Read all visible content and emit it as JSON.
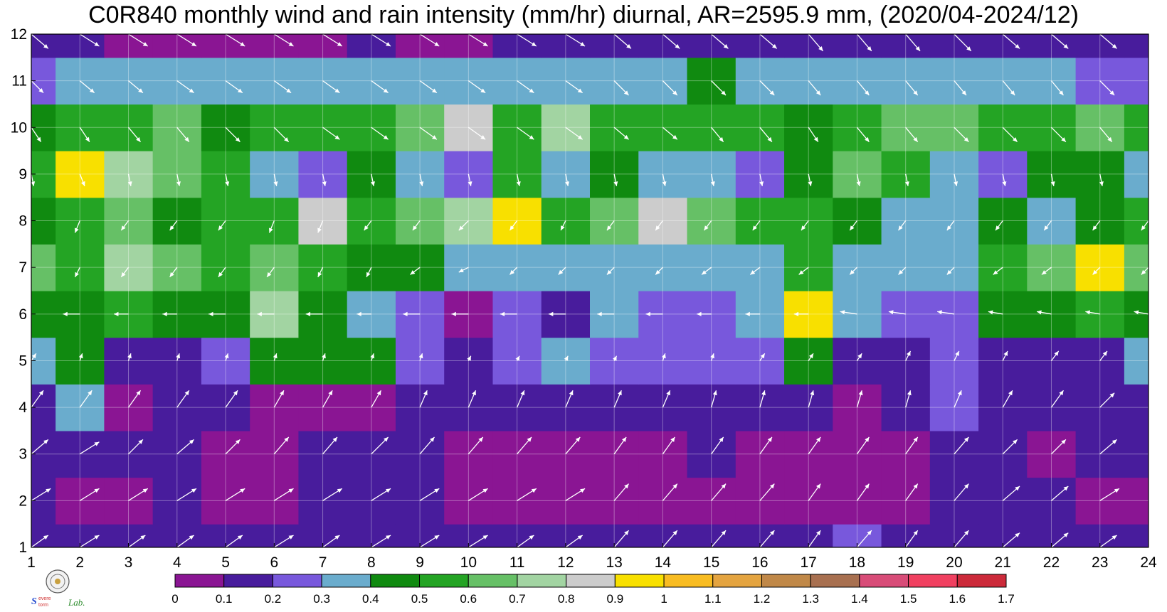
{
  "title": "C0R840 monthly wind and rain intensity (mm/hr) diurnal, AR=2595.9 mm, (2020/04-2024/12)",
  "logo_text": "Severe Storm Lab.",
  "chart_data": {
    "type": "heatmap",
    "title": "C0R840 monthly wind and rain intensity (mm/hr) diurnal, AR=2595.9 mm, (2020/04-2024/12)",
    "xlabel": "",
    "ylabel": "",
    "xlim": [
      1,
      24
    ],
    "ylim": [
      1,
      12
    ],
    "x_ticks": [
      1,
      2,
      3,
      4,
      5,
      6,
      7,
      8,
      9,
      10,
      11,
      12,
      13,
      14,
      15,
      16,
      17,
      18,
      19,
      20,
      21,
      22,
      23,
      24
    ],
    "y_ticks": [
      1,
      2,
      3,
      4,
      5,
      6,
      7,
      8,
      9,
      10,
      11,
      12
    ],
    "grid": true,
    "colorbar": {
      "levels": [
        0,
        0.1,
        0.2,
        0.3,
        0.4,
        0.5,
        0.6,
        0.7,
        0.8,
        0.9,
        1,
        1.1,
        1.2,
        1.3,
        1.4,
        1.5,
        1.6,
        1.7
      ],
      "colors": [
        "#8a1593",
        "#481c9c",
        "#7858dc",
        "#6aaccd",
        "#108a10",
        "#24a424",
        "#66c066",
        "#a2d4a2",
        "#cccccc",
        "#f8e000",
        "#f8bc22",
        "#e4a440",
        "#c08848",
        "#a87050",
        "#d84c78",
        "#f04060",
        "#cc2a3a"
      ]
    },
    "months": [
      1,
      2,
      3,
      4,
      5,
      6,
      7,
      8,
      9,
      10,
      11,
      12
    ],
    "hours": [
      1,
      2,
      3,
      4,
      5,
      6,
      7,
      8,
      9,
      10,
      11,
      12,
      13,
      14,
      15,
      16,
      17,
      18,
      19,
      20,
      21,
      22,
      23,
      24
    ],
    "values": [
      [
        0.18,
        0.15,
        0.18,
        0.15,
        0.14,
        0.13,
        0.14,
        0.16,
        0.15,
        0.15,
        0.12,
        0.16,
        0.13,
        0.12,
        0.14,
        0.13,
        0.18,
        0.21,
        0.16,
        0.14,
        0.14,
        0.13,
        0.12,
        0.15
      ],
      [
        0.15,
        0.09,
        0.08,
        0.12,
        0.08,
        0.08,
        0.11,
        0.14,
        0.14,
        0.08,
        0.06,
        0.07,
        0.06,
        0.07,
        0.06,
        0.07,
        0.06,
        0.05,
        0.06,
        0.12,
        0.15,
        0.15,
        0.08,
        0.06
      ],
      [
        0.14,
        0.14,
        0.12,
        0.15,
        0.06,
        0.08,
        0.16,
        0.16,
        0.15,
        0.05,
        0.04,
        0.05,
        0.05,
        0.04,
        0.14,
        0.05,
        0.07,
        0.04,
        0.06,
        0.12,
        0.14,
        0.08,
        0.14,
        0.13
      ],
      [
        0.18,
        0.32,
        0.06,
        0.12,
        0.11,
        0.08,
        0.08,
        0.08,
        0.11,
        0.13,
        0.14,
        0.15,
        0.17,
        0.14,
        0.14,
        0.12,
        0.12,
        0.08,
        0.14,
        0.21,
        0.16,
        0.17,
        0.15,
        0.16
      ],
      [
        0.35,
        0.42,
        0.18,
        0.18,
        0.26,
        0.42,
        0.46,
        0.45,
        0.24,
        0.18,
        0.23,
        0.33,
        0.26,
        0.24,
        0.22,
        0.26,
        0.42,
        0.15,
        0.16,
        0.22,
        0.12,
        0.12,
        0.17,
        0.38
      ],
      [
        0.48,
        0.48,
        0.55,
        0.42,
        0.45,
        0.74,
        0.46,
        0.38,
        0.26,
        0.08,
        0.24,
        0.18,
        0.34,
        0.29,
        0.23,
        0.33,
        0.94,
        0.36,
        0.26,
        0.25,
        0.42,
        0.48,
        0.52,
        0.46
      ],
      [
        0.62,
        0.51,
        0.72,
        0.66,
        0.58,
        0.62,
        0.52,
        0.42,
        0.42,
        0.36,
        0.38,
        0.32,
        0.34,
        0.36,
        0.36,
        0.36,
        0.58,
        0.38,
        0.32,
        0.33,
        0.58,
        0.66,
        0.92,
        0.68
      ],
      [
        0.46,
        0.52,
        0.66,
        0.46,
        0.52,
        0.52,
        0.82,
        0.56,
        0.62,
        0.72,
        0.98,
        0.54,
        0.68,
        0.86,
        0.62,
        0.58,
        0.52,
        0.46,
        0.36,
        0.33,
        0.42,
        0.38,
        0.42,
        0.52
      ],
      [
        0.53,
        0.96,
        0.72,
        0.64,
        0.54,
        0.36,
        0.22,
        0.46,
        0.36,
        0.22,
        0.52,
        0.38,
        0.42,
        0.36,
        0.34,
        0.22,
        0.44,
        0.62,
        0.52,
        0.34,
        0.22,
        0.42,
        0.46,
        0.33
      ],
      [
        0.46,
        0.58,
        0.52,
        0.66,
        0.48,
        0.52,
        0.58,
        0.54,
        0.62,
        0.82,
        0.56,
        0.78,
        0.56,
        0.54,
        0.56,
        0.52,
        0.46,
        0.52,
        0.68,
        0.64,
        0.52,
        0.54,
        0.62,
        0.55
      ],
      [
        0.26,
        0.36,
        0.34,
        0.36,
        0.38,
        0.36,
        0.34,
        0.36,
        0.36,
        0.34,
        0.36,
        0.38,
        0.36,
        0.36,
        0.42,
        0.34,
        0.32,
        0.36,
        0.38,
        0.38,
        0.36,
        0.32,
        0.26,
        0.22
      ],
      [
        0.15,
        0.14,
        0.06,
        0.07,
        0.08,
        0.07,
        0.08,
        0.12,
        0.06,
        0.06,
        0.12,
        0.14,
        0.12,
        0.13,
        0.15,
        0.13,
        0.14,
        0.16,
        0.14,
        0.15,
        0.15,
        0.16,
        0.14,
        0.15
      ]
    ],
    "wind_vectors": {
      "u": [
        [
          0.7,
          0.8,
          0.7,
          0.7,
          0.7,
          0.8,
          0.7,
          0.8,
          0.8,
          0.8,
          0.7,
          0.7,
          0.6,
          0.6,
          0.6,
          0.6,
          0.5,
          0.6,
          0.5,
          0.6,
          0.7,
          0.7,
          0.7,
          0.7
        ],
        [
          0.8,
          0.8,
          0.8,
          0.8,
          0.8,
          0.8,
          0.8,
          0.8,
          0.8,
          0.8,
          0.8,
          0.8,
          0.6,
          0.6,
          0.6,
          0.6,
          0.5,
          0.5,
          0.5,
          0.6,
          0.7,
          0.7,
          0.8,
          0.8
        ],
        [
          0.7,
          0.8,
          0.6,
          0.7,
          0.6,
          0.6,
          0.6,
          0.7,
          0.6,
          0.6,
          0.6,
          0.6,
          0.5,
          0.5,
          0.5,
          0.5,
          0.5,
          0.5,
          0.5,
          0.6,
          0.6,
          0.6,
          0.7,
          0.7
        ],
        [
          0.5,
          0.5,
          0.5,
          0.5,
          0.5,
          0.4,
          0.4,
          0.4,
          0.3,
          0.3,
          0.3,
          0.3,
          0.3,
          0.3,
          0.2,
          0.2,
          0.2,
          0.2,
          0.2,
          0.3,
          0.4,
          0.5,
          0.6,
          0.5
        ],
        [
          0.2,
          0.1,
          0.1,
          0.1,
          0.1,
          0.1,
          0.1,
          0.1,
          0.1,
          0.1,
          0.1,
          0.1,
          0.1,
          0.1,
          0.1,
          0.2,
          0.2,
          0.2,
          0.2,
          0.2,
          0.2,
          0.3,
          0.3,
          0.2
        ],
        [
          -0.7,
          -0.7,
          -0.6,
          -0.6,
          -0.7,
          -0.7,
          -0.7,
          -0.6,
          -0.7,
          -0.7,
          -0.7,
          -0.7,
          -0.7,
          -0.7,
          -0.6,
          -0.6,
          -0.6,
          -0.7,
          -0.7,
          -0.7,
          -0.6,
          -0.6,
          -0.6,
          -0.6
        ],
        [
          -0.4,
          -0.2,
          -0.3,
          -0.3,
          -0.3,
          -0.3,
          -0.2,
          -0.2,
          -0.4,
          -0.4,
          -0.3,
          -0.3,
          -0.3,
          -0.3,
          -0.4,
          -0.4,
          -0.4,
          -0.3,
          -0.3,
          -0.3,
          -0.4,
          -0.4,
          -0.3,
          -0.3
        ],
        [
          -0.3,
          -0.2,
          -0.3,
          -0.3,
          -0.3,
          -0.2,
          -0.2,
          -0.3,
          -0.3,
          -0.4,
          -0.3,
          -0.2,
          -0.3,
          -0.3,
          -0.3,
          -0.3,
          -0.3,
          -0.3,
          -0.3,
          -0.3,
          -0.3,
          -0.3,
          -0.3,
          -0.3
        ],
        [
          0.1,
          0.2,
          0.1,
          0.1,
          0.1,
          0.1,
          0.1,
          0.1,
          0.1,
          0.1,
          0.1,
          0.1,
          0.1,
          0.1,
          0.1,
          0.1,
          0.1,
          0.1,
          0.1,
          0.1,
          0.1,
          0.1,
          0.1,
          0.1
        ],
        [
          0.4,
          0.4,
          0.5,
          0.5,
          0.6,
          0.6,
          0.7,
          0.7,
          0.7,
          0.7,
          0.7,
          0.7,
          0.6,
          0.6,
          0.5,
          0.5,
          0.4,
          0.5,
          0.5,
          0.6,
          0.6,
          0.6,
          0.5,
          0.5
        ],
        [
          0.5,
          0.6,
          0.6,
          0.7,
          0.7,
          0.7,
          0.7,
          0.7,
          0.7,
          0.7,
          0.7,
          0.7,
          0.6,
          0.6,
          0.6,
          0.6,
          0.5,
          0.5,
          0.5,
          0.5,
          0.5,
          0.5,
          0.6,
          0.6
        ],
        [
          0.7,
          0.8,
          0.8,
          0.8,
          0.8,
          0.8,
          0.8,
          0.8,
          0.8,
          0.8,
          0.8,
          0.8,
          0.7,
          0.7,
          0.7,
          0.7,
          0.6,
          0.6,
          0.6,
          0.7,
          0.7,
          0.7,
          0.7,
          0.7
        ]
      ],
      "v": [
        [
          0.5,
          0.5,
          0.5,
          0.5,
          0.5,
          0.5,
          0.5,
          0.5,
          0.5,
          0.5,
          0.5,
          0.5,
          0.7,
          0.7,
          0.7,
          0.7,
          0.7,
          0.7,
          0.7,
          0.7,
          0.6,
          0.6,
          0.5,
          0.5
        ],
        [
          0.5,
          0.5,
          0.5,
          0.5,
          0.5,
          0.5,
          0.5,
          0.5,
          0.5,
          0.5,
          0.5,
          0.5,
          0.7,
          0.7,
          0.7,
          0.7,
          0.7,
          0.7,
          0.7,
          0.7,
          0.6,
          0.6,
          0.5,
          0.5
        ],
        [
          0.6,
          0.5,
          0.6,
          0.6,
          0.6,
          0.7,
          0.7,
          0.7,
          0.7,
          0.7,
          0.7,
          0.7,
          0.7,
          0.7,
          0.7,
          0.7,
          0.7,
          0.7,
          0.7,
          0.7,
          0.6,
          0.6,
          0.6,
          0.6
        ],
        [
          0.7,
          0.7,
          0.7,
          0.7,
          0.7,
          0.7,
          0.7,
          0.7,
          0.7,
          0.7,
          0.7,
          0.7,
          0.7,
          0.7,
          0.7,
          0.7,
          0.7,
          0.7,
          0.7,
          0.7,
          0.7,
          0.7,
          0.6,
          0.6
        ],
        [
          0.3,
          0.3,
          0.3,
          0.3,
          0.3,
          0.3,
          0.3,
          0.3,
          0.3,
          0.2,
          0.2,
          0.2,
          0.2,
          0.3,
          0.3,
          0.3,
          0.3,
          0.3,
          0.4,
          0.4,
          0.4,
          0.4,
          0.4,
          0.4
        ],
        [
          0.0,
          0.0,
          0.0,
          0.0,
          0.0,
          0.0,
          0.0,
          0.0,
          0.0,
          0.0,
          0.0,
          0.0,
          0.0,
          0.0,
          0.0,
          0.0,
          0.0,
          0.1,
          0.1,
          0.1,
          0.1,
          0.1,
          0.1,
          0.1
        ],
        [
          -0.4,
          -0.4,
          -0.4,
          -0.4,
          -0.4,
          -0.4,
          -0.4,
          -0.4,
          -0.3,
          -0.2,
          -0.3,
          -0.3,
          -0.3,
          -0.3,
          -0.3,
          -0.3,
          -0.3,
          -0.3,
          -0.3,
          -0.3,
          -0.3,
          -0.3,
          -0.3,
          -0.3
        ],
        [
          -0.4,
          -0.5,
          -0.4,
          -0.4,
          -0.4,
          -0.5,
          -0.5,
          -0.4,
          -0.4,
          -0.4,
          -0.4,
          -0.4,
          -0.4,
          -0.4,
          -0.4,
          -0.4,
          -0.4,
          -0.4,
          -0.4,
          -0.4,
          -0.4,
          -0.4,
          -0.4,
          -0.4
        ],
        [
          -0.5,
          -0.5,
          -0.5,
          -0.5,
          -0.5,
          -0.5,
          -0.5,
          -0.5,
          -0.5,
          -0.5,
          -0.5,
          -0.5,
          -0.5,
          -0.5,
          -0.5,
          -0.5,
          -0.5,
          -0.5,
          -0.5,
          -0.5,
          -0.5,
          -0.5,
          -0.5,
          -0.5
        ],
        [
          -0.6,
          -0.6,
          -0.6,
          -0.6,
          -0.6,
          -0.6,
          -0.5,
          -0.5,
          -0.5,
          -0.5,
          -0.5,
          -0.5,
          -0.5,
          -0.5,
          -0.6,
          -0.6,
          -0.6,
          -0.6,
          -0.6,
          -0.6,
          -0.6,
          -0.6,
          -0.6,
          -0.6
        ],
        [
          -0.5,
          -0.5,
          -0.5,
          -0.5,
          -0.5,
          -0.5,
          -0.5,
          -0.5,
          -0.5,
          -0.5,
          -0.5,
          -0.5,
          -0.6,
          -0.6,
          -0.6,
          -0.6,
          -0.6,
          -0.6,
          -0.6,
          -0.6,
          -0.6,
          -0.6,
          -0.6,
          -0.6
        ],
        [
          -0.6,
          -0.5,
          -0.5,
          -0.5,
          -0.5,
          -0.5,
          -0.5,
          -0.5,
          -0.5,
          -0.5,
          -0.5,
          -0.5,
          -0.6,
          -0.6,
          -0.6,
          -0.6,
          -0.7,
          -0.7,
          -0.7,
          -0.7,
          -0.6,
          -0.6,
          -0.6,
          -0.6
        ]
      ]
    }
  }
}
